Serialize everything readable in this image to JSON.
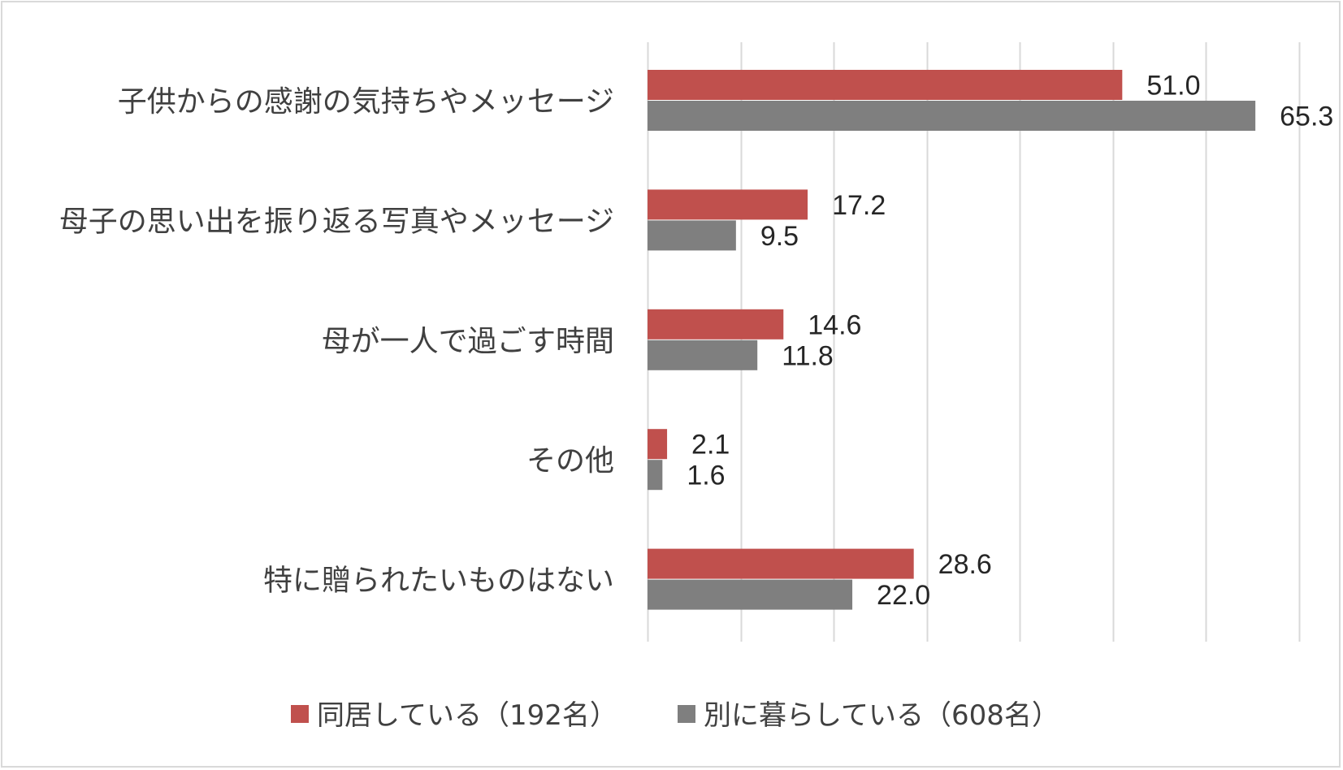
{
  "chart_data": {
    "type": "bar",
    "orientation": "horizontal",
    "categories": [
      "子供からの感謝の気持ちやメッセージ",
      "母子の思い出を振り返る写真やメッセージ",
      "母が一人で過ごす時間",
      "その他",
      "特に贈られたいものはない"
    ],
    "series": [
      {
        "name": "同居している（192名）",
        "color": "#c0504d",
        "values": [
          51.0,
          17.2,
          14.6,
          2.1,
          28.6
        ]
      },
      {
        "name": "別に暮らしている（608名）",
        "color": "#7f7f7f",
        "values": [
          65.3,
          9.5,
          11.8,
          1.6,
          22.0
        ]
      }
    ],
    "xlim": [
      0,
      70
    ],
    "x_grid_step": 10,
    "grid": true,
    "tick_labels_visible": false,
    "data_labels": true,
    "legend_position": "bottom"
  }
}
